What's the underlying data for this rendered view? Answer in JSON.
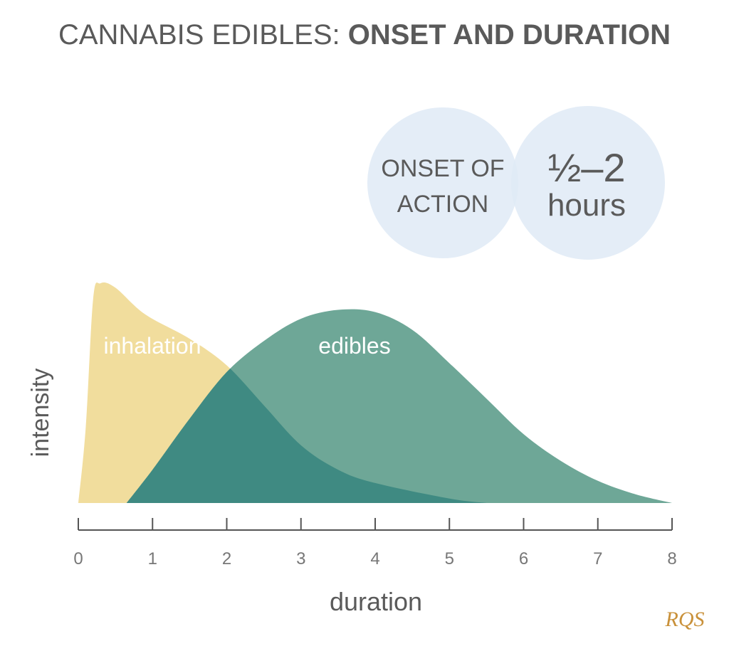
{
  "chart_data": {
    "type": "area",
    "title": "CANNABIS EDIBLES: ",
    "title_bold": "ONSET AND DURATION",
    "callout": {
      "left": [
        "ONSET OF",
        "ACTION"
      ],
      "right": [
        "½–2",
        "hours"
      ]
    },
    "x_label": "duration",
    "y_label": "intensity",
    "xlim": [
      0,
      8
    ],
    "xticks": [
      0,
      1,
      2,
      3,
      4,
      5,
      6,
      7,
      8
    ],
    "ylim": [
      0,
      100
    ],
    "grid": false,
    "series": [
      {
        "name": "inhalation",
        "color": "#f1dd9d",
        "x": [
          0,
          0.1,
          0.2,
          0.3,
          0.5,
          0.9,
          1.5,
          2,
          2.5,
          3,
          3.5,
          4,
          5,
          5.5
        ],
        "values": [
          0,
          34,
          92,
          99,
          97,
          85,
          74,
          62,
          44,
          26,
          15,
          9,
          2,
          0
        ]
      },
      {
        "name": "edibles",
        "color": "#6ea797",
        "x": [
          0.65,
          1,
          1.5,
          2,
          2.5,
          3,
          3.5,
          4,
          4.5,
          5,
          5.5,
          6,
          6.5,
          7,
          7.5,
          8
        ],
        "values": [
          0,
          15,
          38,
          59,
          73,
          83,
          87,
          86,
          78,
          63,
          47,
          31,
          19,
          10,
          4,
          0
        ]
      }
    ],
    "logo": "RQS"
  }
}
